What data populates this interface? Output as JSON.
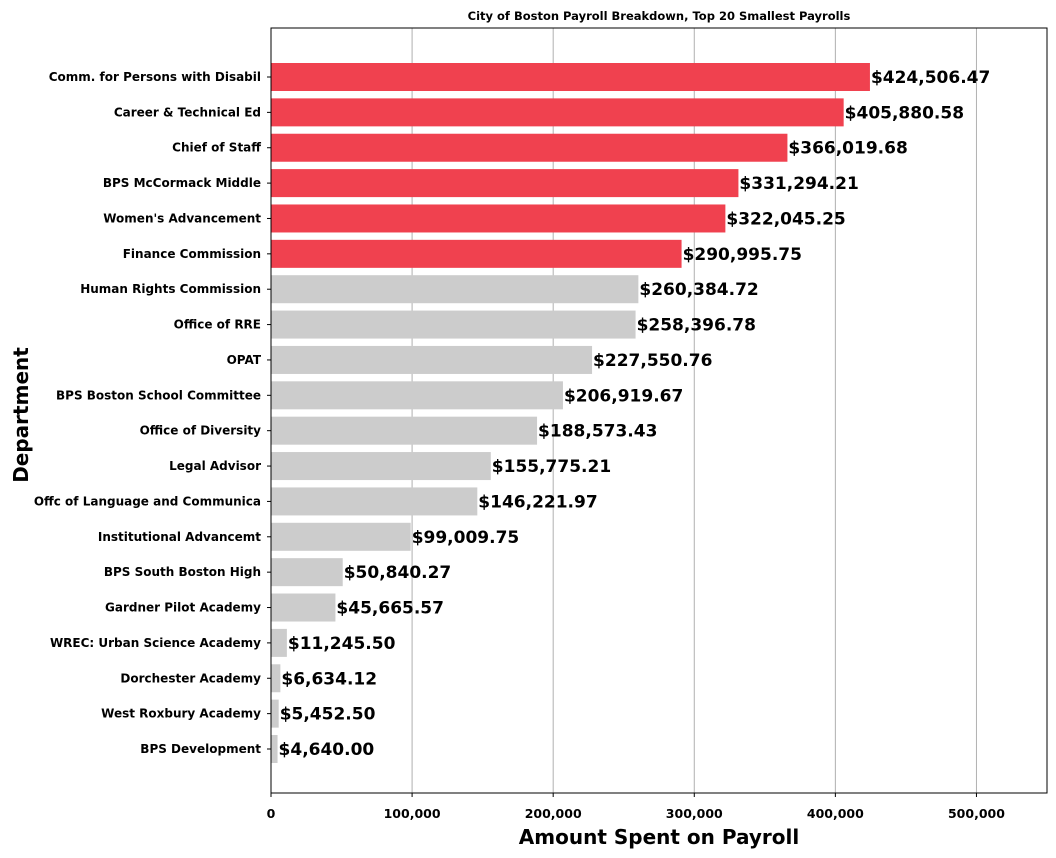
{
  "chart_data": {
    "type": "bar",
    "orientation": "horizontal",
    "title": "City of Boston Payroll Breakdown, Top 20 Smallest Payrolls",
    "xlabel": "Amount Spent on Payroll",
    "ylabel": "Department",
    "xlim": [
      0,
      550000
    ],
    "xticks": [
      0,
      100000,
      200000,
      300000,
      400000,
      500000
    ],
    "xtick_labels": [
      "0",
      "100,000",
      "200,000",
      "300,000",
      "400,000",
      "500,000"
    ],
    "grid": "x-axis vertical lines",
    "categories": [
      "Comm. for Persons with Disabil",
      "Career & Technical Ed",
      "Chief of Staff",
      "BPS McCormack Middle",
      "Women's Advancement",
      "Finance Commission",
      "Human Rights Commission",
      "Office of RRE",
      "OPAT",
      "BPS Boston School Committee",
      "Office of Diversity",
      "Legal Advisor",
      "Offc of Language and Communica",
      "Institutional Advancemt",
      "BPS South Boston High",
      "Gardner Pilot  Academy",
      "WREC: Urban Science Academy",
      "Dorchester Academy",
      "West Roxbury Academy",
      "BPS Development"
    ],
    "values": [
      424506.47,
      405880.58,
      366019.68,
      331294.21,
      322045.25,
      290995.75,
      260384.72,
      258396.78,
      227550.76,
      206919.67,
      188573.43,
      155775.21,
      146221.97,
      99009.75,
      50840.27,
      45665.57,
      11245.5,
      6634.12,
      5452.5,
      4640.0
    ],
    "value_labels": [
      "$424,506.47",
      "$405,880.58",
      "$366,019.68",
      "$331,294.21",
      "$322,045.25",
      "$290,995.75",
      "$260,384.72",
      "$258,396.78",
      "$227,550.76",
      "$206,919.67",
      "$188,573.43",
      "$155,775.21",
      "$146,221.97",
      "$99,009.75",
      "$50,840.27",
      "$45,665.57",
      "$11,245.50",
      "$6,634.12",
      "$5,452.50",
      "$4,640.00"
    ],
    "highlight_count": 6,
    "colors": {
      "highlight": "#f0414f",
      "default": "#cccccc"
    }
  }
}
